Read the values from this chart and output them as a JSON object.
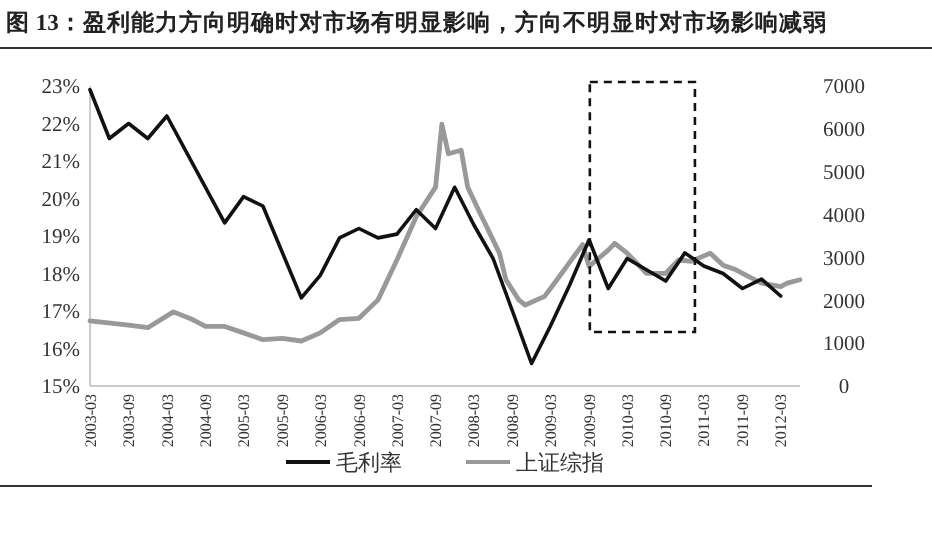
{
  "chart_data": {
    "type": "line",
    "title": "图 13：盈利能力方向明确时对市场有明显影响，方向不明显时对市场影响减弱",
    "xlim": [
      "2003-03",
      "2012-06"
    ],
    "xticks": [
      "2003-03",
      "2003-09",
      "2004-03",
      "2004-09",
      "2005-03",
      "2005-09",
      "2006-03",
      "2006-09",
      "2007-03",
      "2007-09",
      "2008-03",
      "2008-09",
      "2009-03",
      "2009-09",
      "2010-03",
      "2010-09",
      "2011-03",
      "2011-09",
      "2012-03"
    ],
    "ylim": [
      15,
      23
    ],
    "yticks": [
      {
        "value": 15,
        "label": "15%"
      },
      {
        "value": 16,
        "label": "16%"
      },
      {
        "value": 17,
        "label": "17%"
      },
      {
        "value": 18,
        "label": "18%"
      },
      {
        "value": 19,
        "label": "19%"
      },
      {
        "value": 20,
        "label": "20%"
      },
      {
        "value": 21,
        "label": "21%"
      },
      {
        "value": 22,
        "label": "22%"
      },
      {
        "value": 23,
        "label": "23%"
      }
    ],
    "y2lim": [
      0,
      7000
    ],
    "y2ticks": [
      0,
      1000,
      2000,
      3000,
      4000,
      5000,
      6000,
      7000
    ],
    "series": [
      {
        "name": "毛利率",
        "color": "#111111",
        "axis": "y",
        "x": [
          "2003-03",
          "2003-06",
          "2003-09",
          "2003-12",
          "2004-03",
          "2004-12",
          "2005-03",
          "2005-06",
          "2005-12",
          "2006-03",
          "2006-06",
          "2006-09",
          "2006-12",
          "2007-03",
          "2007-06",
          "2007-09",
          "2007-12",
          "2008-03",
          "2008-06",
          "2008-09",
          "2008-12",
          "2009-03",
          "2009-06",
          "2009-09",
          "2009-12",
          "2010-03",
          "2010-06",
          "2010-09",
          "2010-12",
          "2011-03",
          "2011-06",
          "2011-09",
          "2011-12",
          "2012-03"
        ],
        "values": [
          22.9,
          21.6,
          22,
          21.6,
          22.2,
          19.35,
          20.05,
          19.8,
          17.35,
          17.95,
          18.95,
          19.2,
          18.95,
          19.05,
          19.7,
          19.2,
          20.3,
          19.3,
          18.4,
          17,
          15.6,
          16.6,
          17.7,
          18.9,
          17.6,
          18.4,
          18.1,
          17.8,
          18.55,
          18.2,
          18,
          17.6,
          17.85,
          17.4
        ]
      },
      {
        "name": "上证综指",
        "color": "#999999",
        "axis": "y2",
        "x": [
          "2003-03",
          "2003-09",
          "2003-12",
          "2004-04",
          "2004-07",
          "2004-09",
          "2004-12",
          "2005-03",
          "2005-06",
          "2005-09",
          "2005-12",
          "2006-03",
          "2006-06",
          "2006-09",
          "2006-12",
          "2007-03",
          "2007-06",
          "2007-09",
          "2007-10",
          "2007-11",
          "2008-01",
          "2008-02",
          "2008-04",
          "2008-05",
          "2008-07",
          "2008-08",
          "2008-10",
          "2008-11",
          "2009-02",
          "2009-04",
          "2009-08",
          "2009-09",
          "2009-12",
          "2010-01",
          "2010-03",
          "2010-06",
          "2010-09",
          "2010-11",
          "2011-01",
          "2011-04",
          "2011-06",
          "2011-08",
          "2011-10",
          "2011-12",
          "2012-03",
          "2012-04",
          "2012-06"
        ],
        "values": [
          1520,
          1420,
          1360,
          1730,
          1550,
          1390,
          1390,
          1240,
          1080,
          1110,
          1050,
          1240,
          1550,
          1580,
          2010,
          2940,
          3950,
          4640,
          6110,
          5420,
          5500,
          4640,
          4020,
          3720,
          3100,
          2480,
          2010,
          1890,
          2090,
          2480,
          3300,
          2790,
          3170,
          3330,
          3100,
          2630,
          2630,
          2940,
          2910,
          3100,
          2820,
          2710,
          2550,
          2400,
          2320,
          2400,
          2480
        ]
      }
    ],
    "legend": "bottom"
  }
}
